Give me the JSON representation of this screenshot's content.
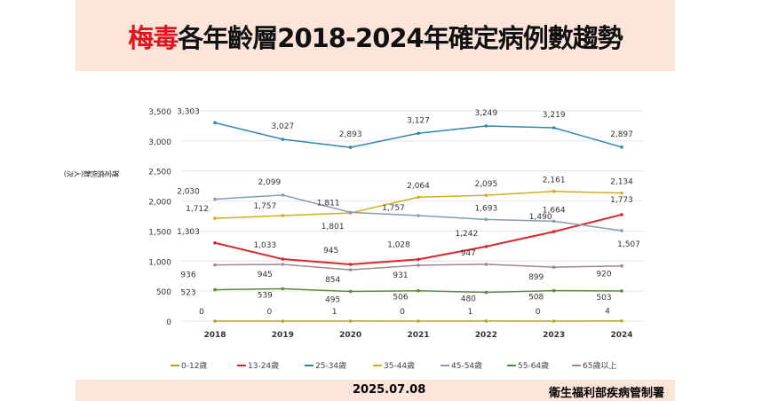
{
  "title": {
    "highlight": "梅毒",
    "rest": "各年齡層2018-2024年確定病例數趨勢"
  },
  "footer": {
    "date": "2025.07.08",
    "source": "衛生福利部疾病管制署"
  },
  "chart_data": {
    "type": "line",
    "title": "梅毒各年齡層2018-2024年確定病例數趨勢",
    "ylabel": "確定病例數(人次)",
    "xlabel": "",
    "x": [
      "2018",
      "2019",
      "2020",
      "2021",
      "2022",
      "2023",
      "2024"
    ],
    "ylim": [
      0,
      3500
    ],
    "yticks": [
      "0",
      "500",
      "1,000",
      "1,500",
      "2,000",
      "2,500",
      "3,000",
      "3,500"
    ],
    "grid": true,
    "legend": "bottom",
    "series": [
      {
        "name": "0-12歲",
        "color": "#b5a11c",
        "values": [
          0,
          0,
          1,
          0,
          1,
          0,
          4
        ]
      },
      {
        "name": "13-24歲",
        "color": "#d9262b",
        "values": [
          1303,
          1033,
          945,
          1028,
          1242,
          1490,
          1773
        ]
      },
      {
        "name": "25-34歲",
        "color": "#2f86b0",
        "values": [
          3303,
          3027,
          2893,
          3127,
          3249,
          3219,
          2897
        ]
      },
      {
        "name": "35-44歲",
        "color": "#d4aa1e",
        "values": [
          1712,
          1757,
          1801,
          2064,
          2095,
          2161,
          2134
        ]
      },
      {
        "name": "45-54歲",
        "color": "#8d9aaf",
        "values": [
          2030,
          2099,
          1811,
          1757,
          1693,
          1664,
          1507
        ]
      },
      {
        "name": "55-64歲",
        "color": "#5b8a3a",
        "values": [
          523,
          539,
          495,
          506,
          480,
          508,
          503
        ]
      },
      {
        "name": "65歲以上",
        "color": "#9c8a86",
        "values": [
          936,
          945,
          854,
          931,
          947,
          899,
          920
        ]
      }
    ]
  }
}
